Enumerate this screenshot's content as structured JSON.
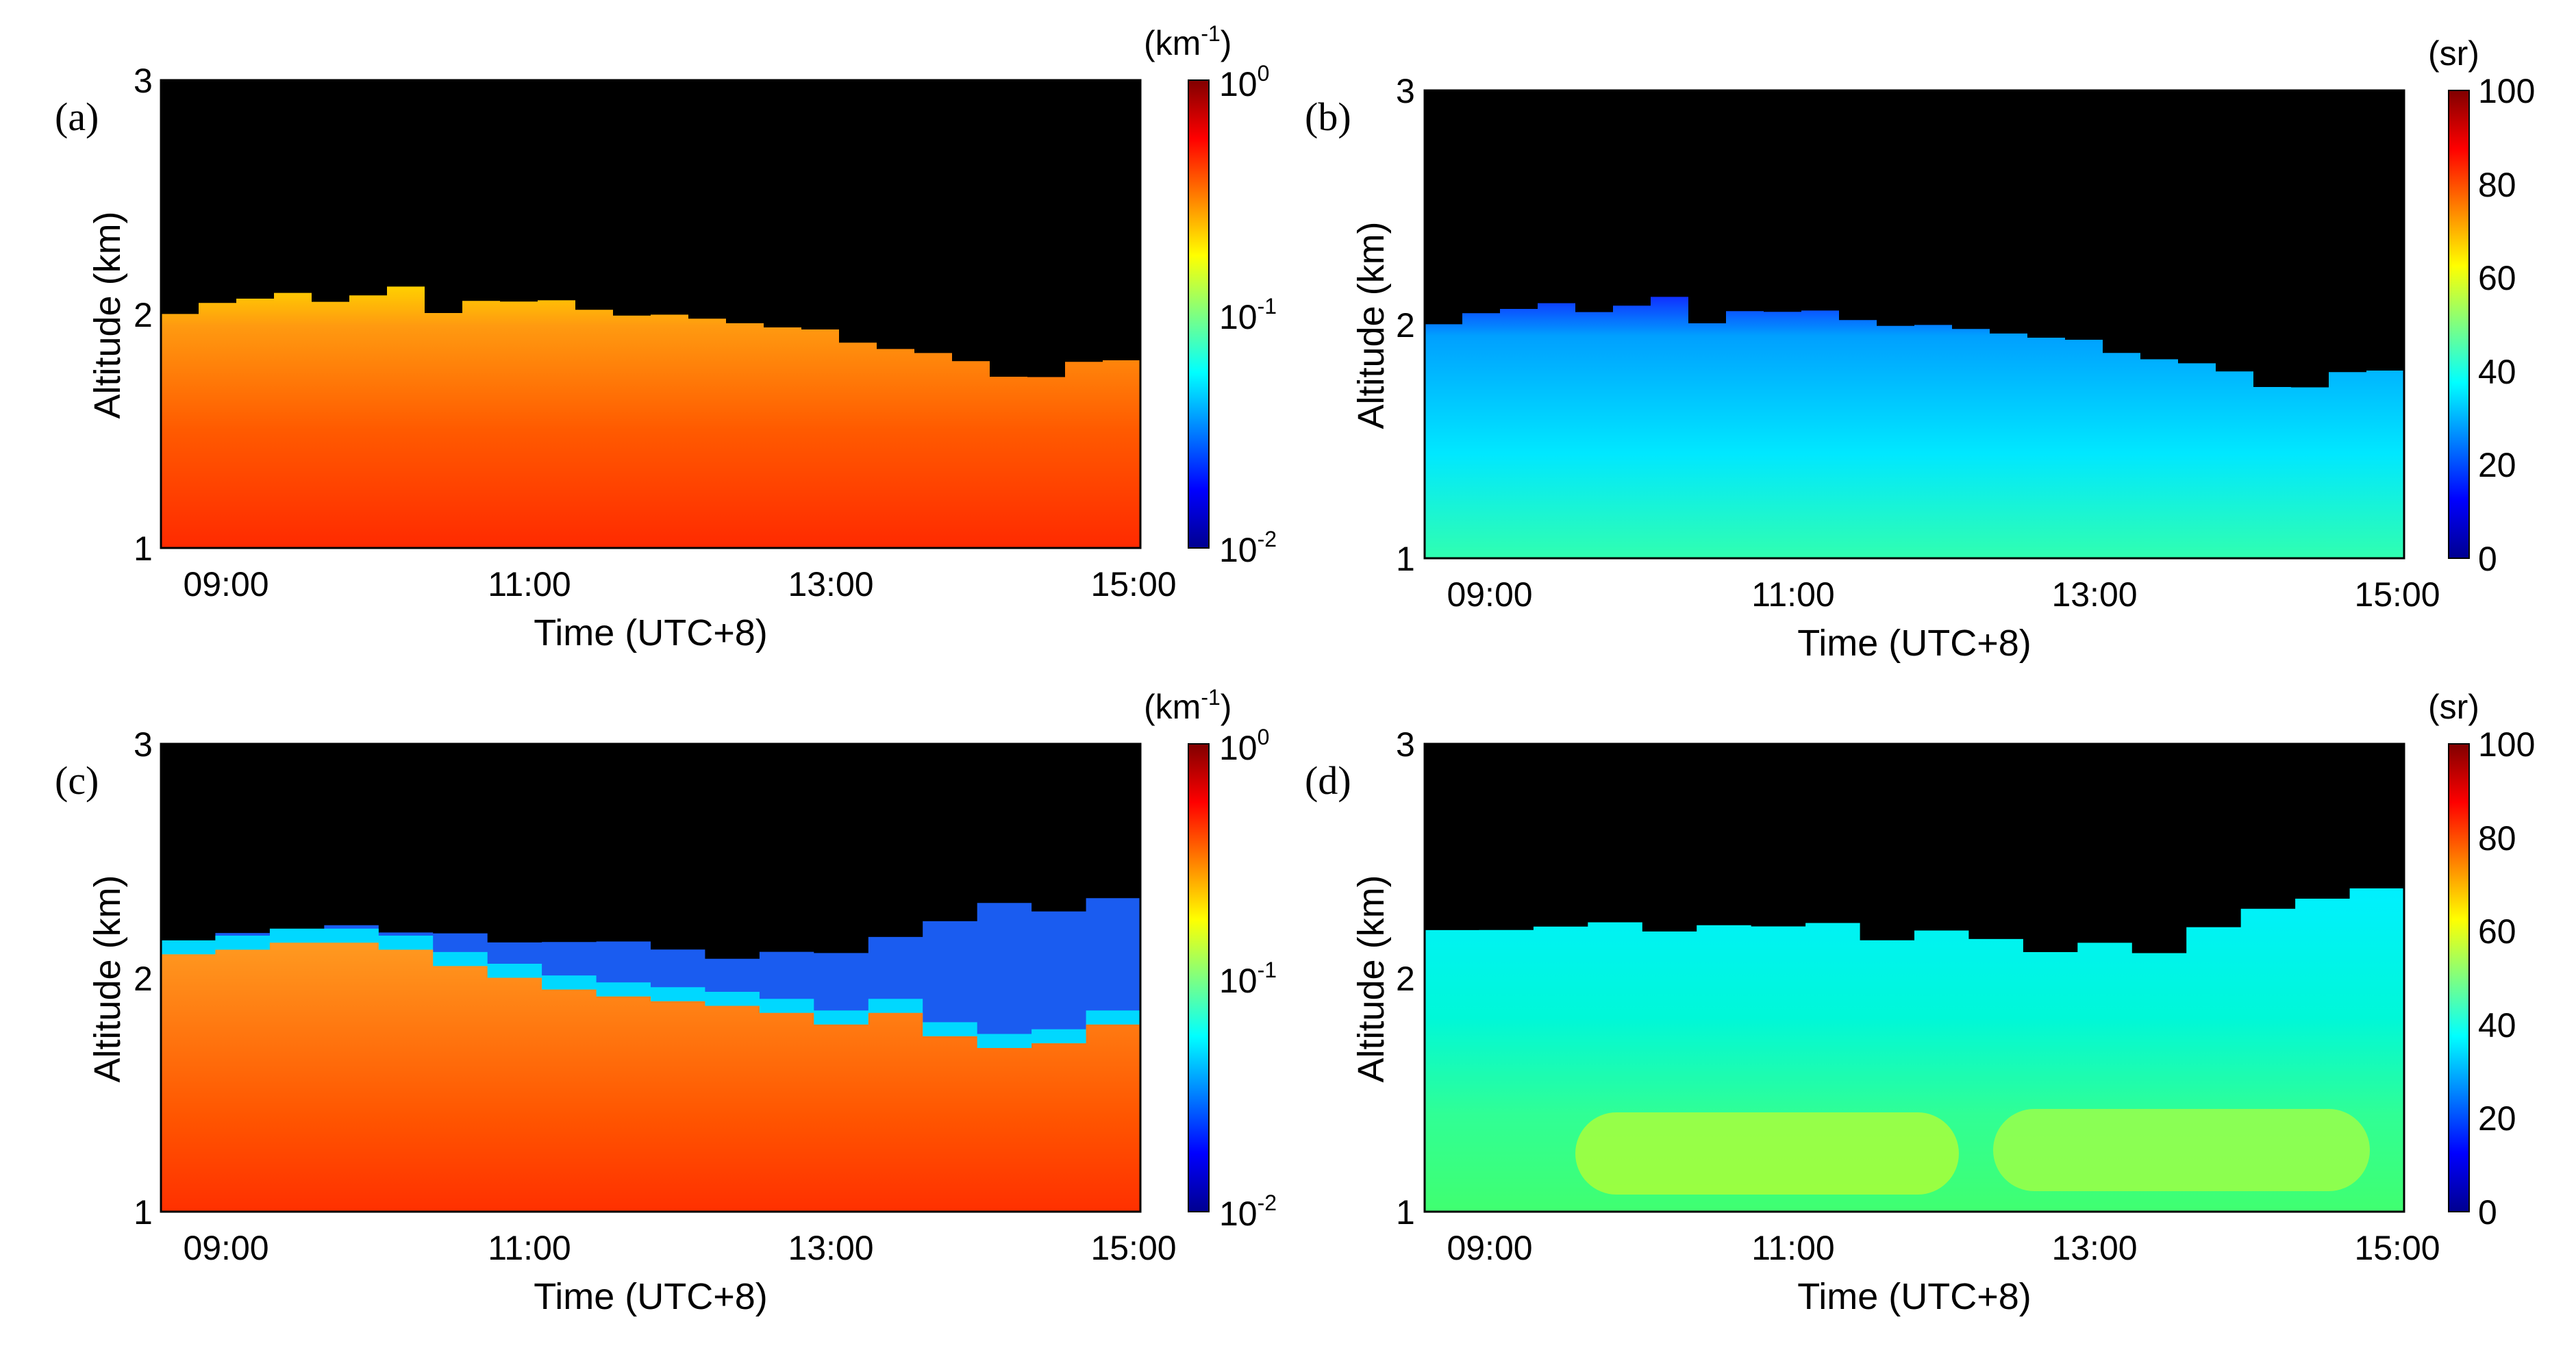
{
  "chart_data": [
    {
      "type": "heatmap",
      "panel_label": "(a)",
      "title": "",
      "xlabel": "Time (UTC+8)",
      "ylabel": "Altitude (km)",
      "x_ticks": [
        "09:00",
        "11:00",
        "13:00",
        "15:00"
      ],
      "y_ticks": [
        "1",
        "2",
        "3"
      ],
      "ylim": [
        1,
        3
      ],
      "variable": "extinction",
      "colorbar": {
        "unit_text": "(km",
        "unit_sup": "-1",
        "unit_close": ")",
        "scale": "log",
        "range": [
          0.01,
          1
        ],
        "ticks": [
          {
            "base": "10",
            "exp": "0"
          },
          {
            "base": "10",
            "exp": "-1"
          },
          {
            "base": "10",
            "exp": "-2"
          }
        ]
      },
      "layer_top_km": [
        2.0,
        2.05,
        2.05,
        2.08,
        2.05,
        2.08,
        2.1,
        2.02,
        2.06,
        2.05,
        2.05,
        2.03,
        2.0,
        1.98,
        1.98,
        1.95,
        1.95,
        1.92,
        1.88,
        1.85,
        1.82,
        1.78,
        1.75,
        1.75,
        1.78,
        1.8
      ]
    },
    {
      "type": "heatmap",
      "panel_label": "(b)",
      "title": "",
      "xlabel": "Time (UTC+8)",
      "ylabel": "Altitude (km)",
      "x_ticks": [
        "09:00",
        "11:00",
        "13:00",
        "15:00"
      ],
      "y_ticks": [
        "1",
        "2",
        "3"
      ],
      "ylim": [
        1,
        3
      ],
      "variable": "lidar_ratio",
      "colorbar": {
        "unit_text": "(sr)",
        "scale": "linear",
        "range": [
          0,
          100
        ],
        "ticks": [
          "100",
          "80",
          "60",
          "40",
          "20",
          "0"
        ]
      },
      "layer_top_km": [
        2.0,
        2.05,
        2.05,
        2.08,
        2.05,
        2.08,
        2.1,
        2.02,
        2.06,
        2.05,
        2.05,
        2.03,
        2.0,
        1.98,
        1.98,
        1.95,
        1.95,
        1.92,
        1.88,
        1.85,
        1.82,
        1.78,
        1.75,
        1.75,
        1.78,
        1.8
      ]
    },
    {
      "type": "heatmap",
      "panel_label": "(c)",
      "title": "",
      "xlabel": "Time (UTC+8)",
      "ylabel": "Altitude (km)",
      "x_ticks": [
        "09:00",
        "11:00",
        "13:00",
        "15:00"
      ],
      "y_ticks": [
        "1",
        "2",
        "3"
      ],
      "ylim": [
        1,
        3
      ],
      "variable": "extinction",
      "colorbar": {
        "unit_text": "(km",
        "unit_sup": "-1",
        "unit_close": ")",
        "scale": "log",
        "range": [
          0.01,
          1
        ],
        "ticks": [
          {
            "base": "10",
            "exp": "0"
          },
          {
            "base": "10",
            "exp": "-1"
          },
          {
            "base": "10",
            "exp": "-2"
          }
        ]
      },
      "layer_top_km": [
        2.1,
        2.12,
        2.15,
        2.15,
        2.12,
        2.05,
        2.0,
        1.95,
        1.92,
        1.9,
        1.88,
        1.85,
        1.8,
        1.85,
        1.75,
        1.7,
        1.72,
        1.8
      ],
      "haze_top_km": [
        2.15,
        2.18,
        2.2,
        2.22,
        2.2,
        2.18,
        2.17,
        2.15,
        2.15,
        2.12,
        2.1,
        2.12,
        2.1,
        2.18,
        2.25,
        2.3,
        2.3,
        2.35
      ]
    },
    {
      "type": "heatmap",
      "panel_label": "(d)",
      "title": "",
      "xlabel": "Time (UTC+8)",
      "ylabel": "Altitude (km)",
      "x_ticks": [
        "09:00",
        "11:00",
        "13:00",
        "15:00"
      ],
      "y_ticks": [
        "1",
        "2",
        "3"
      ],
      "ylim": [
        1,
        3
      ],
      "variable": "lidar_ratio",
      "colorbar": {
        "unit_text": "(sr)",
        "scale": "linear",
        "range": [
          0,
          100
        ],
        "ticks": [
          "100",
          "80",
          "60",
          "40",
          "20",
          "0"
        ]
      },
      "layer_top_km": [
        2.2,
        2.22,
        2.22,
        2.25,
        2.2,
        2.22,
        2.2,
        2.22,
        2.18,
        2.2,
        2.15,
        2.12,
        2.15,
        2.12,
        2.2,
        2.3,
        2.35,
        2.38
      ]
    }
  ],
  "colors": {
    "background": "#000000",
    "accent": "#ff0000"
  }
}
